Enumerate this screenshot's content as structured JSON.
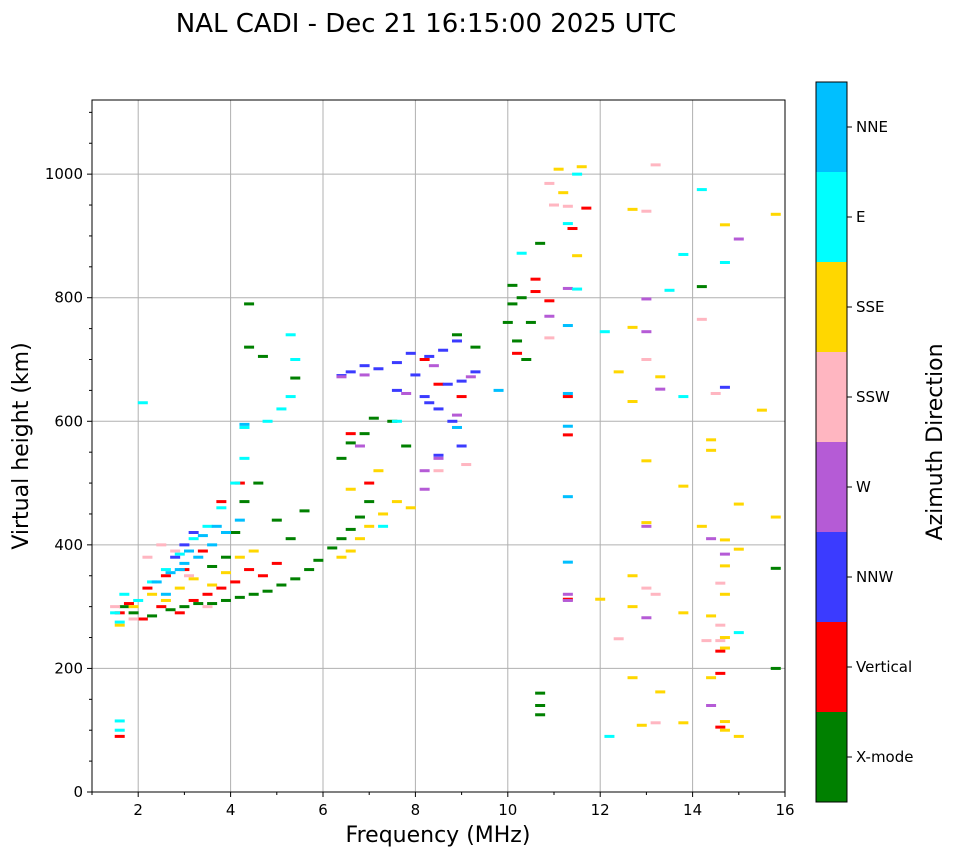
{
  "chart_data": {
    "type": "scatter",
    "title": "NAL CADI - Dec 21 16:15:00 2025 UTC",
    "xlabel": "Frequency (MHz)",
    "ylabel": "Virtual height (km)",
    "xlim": [
      1,
      16
    ],
    "ylim": [
      0,
      1120
    ],
    "xticks": [
      2,
      4,
      6,
      8,
      10,
      12,
      14,
      16
    ],
    "yticks": [
      0,
      200,
      400,
      600,
      800,
      1000
    ],
    "grid": true,
    "colorbar": {
      "label": "Azimuth Direction",
      "categories": [
        {
          "name": "X-mode",
          "color": "#008000"
        },
        {
          "name": "Vertical",
          "color": "#ff0000"
        },
        {
          "name": "NNW",
          "color": "#3b3bff"
        },
        {
          "name": "W",
          "color": "#b55bd6"
        },
        {
          "name": "SSW",
          "color": "#ffb6c1"
        },
        {
          "name": "SSE",
          "color": "#ffd700"
        },
        {
          "name": "E",
          "color": "#00ffff"
        },
        {
          "name": "NNE",
          "color": "#00bfff"
        }
      ]
    },
    "series": [
      {
        "name": "X-mode",
        "points": [
          [
            1.7,
            300
          ],
          [
            1.9,
            290
          ],
          [
            2.3,
            285
          ],
          [
            2.7,
            295
          ],
          [
            3.0,
            300
          ],
          [
            3.3,
            305
          ],
          [
            3.6,
            305
          ],
          [
            3.9,
            310
          ],
          [
            4.2,
            315
          ],
          [
            4.5,
            320
          ],
          [
            4.8,
            325
          ],
          [
            5.1,
            335
          ],
          [
            5.4,
            345
          ],
          [
            5.7,
            360
          ],
          [
            5.9,
            375
          ],
          [
            6.2,
            395
          ],
          [
            6.4,
            410
          ],
          [
            6.6,
            425
          ],
          [
            6.8,
            445
          ],
          [
            7.0,
            470
          ],
          [
            6.4,
            540
          ],
          [
            6.6,
            565
          ],
          [
            6.9,
            580
          ],
          [
            7.1,
            605
          ],
          [
            4.4,
            720
          ],
          [
            4.4,
            790
          ],
          [
            4.7,
            705
          ],
          [
            5.4,
            670
          ],
          [
            3.6,
            365
          ],
          [
            3.9,
            380
          ],
          [
            4.1,
            420
          ],
          [
            4.3,
            470
          ],
          [
            4.6,
            500
          ],
          [
            5.0,
            440
          ],
          [
            5.3,
            410
          ],
          [
            5.6,
            455
          ],
          [
            10.0,
            760
          ],
          [
            10.1,
            790
          ],
          [
            10.2,
            730
          ],
          [
            10.3,
            800
          ],
          [
            10.4,
            700
          ],
          [
            10.1,
            820
          ],
          [
            10.5,
            760
          ],
          [
            10.7,
            888
          ],
          [
            10.7,
            160
          ],
          [
            10.7,
            140
          ],
          [
            10.7,
            125
          ],
          [
            14.2,
            818
          ],
          [
            15.8,
            362
          ],
          [
            15.8,
            200
          ],
          [
            7.5,
            600
          ],
          [
            7.8,
            560
          ],
          [
            8.9,
            740
          ],
          [
            9.3,
            720
          ]
        ]
      },
      {
        "name": "Vertical",
        "points": [
          [
            1.6,
            290
          ],
          [
            1.8,
            305
          ],
          [
            2.1,
            280
          ],
          [
            2.5,
            300
          ],
          [
            2.9,
            290
          ],
          [
            3.2,
            310
          ],
          [
            3.5,
            320
          ],
          [
            3.8,
            330
          ],
          [
            4.1,
            340
          ],
          [
            4.4,
            360
          ],
          [
            4.7,
            350
          ],
          [
            5.0,
            370
          ],
          [
            2.2,
            330
          ],
          [
            2.6,
            350
          ],
          [
            3.0,
            360
          ],
          [
            3.4,
            390
          ],
          [
            3.8,
            470
          ],
          [
            4.2,
            500
          ],
          [
            8.2,
            700
          ],
          [
            8.5,
            660
          ],
          [
            9.0,
            640
          ],
          [
            10.2,
            710
          ],
          [
            10.6,
            830
          ],
          [
            10.6,
            810
          ],
          [
            10.9,
            795
          ],
          [
            11.3,
            640
          ],
          [
            11.3,
            578
          ],
          [
            11.3,
            312
          ],
          [
            11.7,
            945
          ],
          [
            11.4,
            912
          ],
          [
            14.6,
            228
          ],
          [
            14.6,
            192
          ],
          [
            14.6,
            105
          ],
          [
            1.6,
            90
          ],
          [
            6.6,
            580
          ],
          [
            7.0,
            500
          ]
        ]
      },
      {
        "name": "NNW",
        "points": [
          [
            6.6,
            680
          ],
          [
            6.9,
            690
          ],
          [
            7.2,
            685
          ],
          [
            7.6,
            695
          ],
          [
            7.9,
            710
          ],
          [
            8.3,
            705
          ],
          [
            8.6,
            715
          ],
          [
            8.9,
            730
          ],
          [
            8.2,
            640
          ],
          [
            8.5,
            620
          ],
          [
            8.8,
            600
          ],
          [
            9.0,
            665
          ],
          [
            9.3,
            680
          ],
          [
            8.5,
            545
          ],
          [
            9.0,
            560
          ],
          [
            7.6,
            650
          ],
          [
            8.0,
            675
          ],
          [
            8.3,
            630
          ],
          [
            8.7,
            660
          ],
          [
            14.7,
            655
          ],
          [
            3.0,
            400
          ],
          [
            3.2,
            420
          ],
          [
            2.8,
            380
          ],
          [
            6.4,
            674
          ]
        ]
      },
      {
        "name": "W",
        "points": [
          [
            6.4,
            672
          ],
          [
            6.9,
            675
          ],
          [
            8.2,
            490
          ],
          [
            8.2,
            520
          ],
          [
            8.5,
            540
          ],
          [
            8.9,
            610
          ],
          [
            9.2,
            672
          ],
          [
            8.4,
            690
          ],
          [
            11.3,
            815
          ],
          [
            11.3,
            320
          ],
          [
            11.3,
            310
          ],
          [
            13.0,
            798
          ],
          [
            13.0,
            745
          ],
          [
            13.3,
            652
          ],
          [
            14.4,
            410
          ],
          [
            14.7,
            385
          ],
          [
            15.0,
            895
          ],
          [
            14.4,
            140
          ],
          [
            13.0,
            282
          ],
          [
            13.0,
            430
          ],
          [
            10.9,
            770
          ],
          [
            7.8,
            645
          ],
          [
            6.8,
            560
          ]
        ]
      },
      {
        "name": "SSW",
        "points": [
          [
            1.5,
            300
          ],
          [
            1.9,
            280
          ],
          [
            2.2,
            380
          ],
          [
            2.5,
            400
          ],
          [
            2.8,
            390
          ],
          [
            3.1,
            350
          ],
          [
            3.5,
            300
          ],
          [
            10.9,
            985
          ],
          [
            11.0,
            950
          ],
          [
            11.3,
            948
          ],
          [
            10.9,
            735
          ],
          [
            13.0,
            940
          ],
          [
            13.0,
            700
          ],
          [
            13.2,
            1015
          ],
          [
            14.2,
            765
          ],
          [
            14.5,
            645
          ],
          [
            14.6,
            338
          ],
          [
            14.6,
            270
          ],
          [
            14.6,
            245
          ],
          [
            14.3,
            245
          ],
          [
            12.4,
            248
          ],
          [
            13.0,
            330
          ],
          [
            13.2,
            320
          ],
          [
            13.2,
            112
          ],
          [
            9.1,
            530
          ],
          [
            8.5,
            520
          ]
        ]
      },
      {
        "name": "SSE",
        "points": [
          [
            1.6,
            270
          ],
          [
            1.9,
            300
          ],
          [
            2.3,
            320
          ],
          [
            2.6,
            310
          ],
          [
            2.9,
            330
          ],
          [
            3.2,
            345
          ],
          [
            3.6,
            335
          ],
          [
            3.9,
            355
          ],
          [
            4.2,
            380
          ],
          [
            4.5,
            390
          ],
          [
            6.4,
            380
          ],
          [
            6.6,
            390
          ],
          [
            6.8,
            410
          ],
          [
            7.0,
            430
          ],
          [
            7.3,
            450
          ],
          [
            7.6,
            470
          ],
          [
            7.9,
            460
          ],
          [
            6.6,
            490
          ],
          [
            7.2,
            520
          ],
          [
            11.1,
            1008
          ],
          [
            11.2,
            970
          ],
          [
            11.6,
            1012
          ],
          [
            11.5,
            868
          ],
          [
            12.7,
            943
          ],
          [
            12.7,
            752
          ],
          [
            12.7,
            632
          ],
          [
            12.4,
            680
          ],
          [
            13.0,
            536
          ],
          [
            13.0,
            436
          ],
          [
            13.3,
            672
          ],
          [
            12.7,
            350
          ],
          [
            12.7,
            300
          ],
          [
            12.0,
            312
          ],
          [
            12.7,
            185
          ],
          [
            12.9,
            108
          ],
          [
            13.3,
            162
          ],
          [
            13.8,
            112
          ],
          [
            13.8,
            290
          ],
          [
            13.8,
            495
          ],
          [
            14.2,
            430
          ],
          [
            14.4,
            570
          ],
          [
            14.4,
            553
          ],
          [
            14.4,
            285
          ],
          [
            14.4,
            185
          ],
          [
            14.7,
            918
          ],
          [
            14.7,
            408
          ],
          [
            14.7,
            366
          ],
          [
            14.7,
            320
          ],
          [
            14.7,
            250
          ],
          [
            14.7,
            233
          ],
          [
            14.7,
            114
          ],
          [
            14.7,
            100
          ],
          [
            15.0,
            466
          ],
          [
            15.0,
            393
          ],
          [
            15.0,
            90
          ],
          [
            15.5,
            618
          ],
          [
            15.8,
            935
          ],
          [
            15.8,
            445
          ]
        ]
      },
      {
        "name": "E",
        "points": [
          [
            1.5,
            290
          ],
          [
            1.6,
            275
          ],
          [
            1.7,
            320
          ],
          [
            2.0,
            310
          ],
          [
            2.3,
            340
          ],
          [
            2.6,
            360
          ],
          [
            2.9,
            385
          ],
          [
            3.2,
            410
          ],
          [
            3.5,
            430
          ],
          [
            3.8,
            460
          ],
          [
            4.1,
            500
          ],
          [
            4.3,
            540
          ],
          [
            4.3,
            590
          ],
          [
            4.8,
            600
          ],
          [
            5.1,
            620
          ],
          [
            5.3,
            640
          ],
          [
            5.4,
            700
          ],
          [
            5.3,
            740
          ],
          [
            2.1,
            630
          ],
          [
            11.5,
            1000
          ],
          [
            11.3,
            920
          ],
          [
            11.5,
            814
          ],
          [
            12.1,
            745
          ],
          [
            10.3,
            872
          ],
          [
            14.2,
            975
          ],
          [
            14.7,
            857
          ],
          [
            13.8,
            870
          ],
          [
            13.8,
            640
          ],
          [
            13.5,
            812
          ],
          [
            15.0,
            258
          ],
          [
            12.2,
            90
          ],
          [
            1.6,
            115
          ],
          [
            1.6,
            100
          ],
          [
            7.3,
            430
          ],
          [
            7.6,
            600
          ]
        ]
      },
      {
        "name": "NNE",
        "points": [
          [
            2.4,
            340
          ],
          [
            2.7,
            355
          ],
          [
            3.0,
            370
          ],
          [
            3.3,
            380
          ],
          [
            3.6,
            400
          ],
          [
            3.9,
            420
          ],
          [
            4.2,
            440
          ],
          [
            2.6,
            320
          ],
          [
            3.1,
            390
          ],
          [
            3.4,
            415
          ],
          [
            4.3,
            595
          ],
          [
            11.3,
            592
          ],
          [
            11.3,
            478
          ],
          [
            11.3,
            372
          ],
          [
            11.3,
            755
          ],
          [
            11.3,
            645
          ],
          [
            9.8,
            650
          ],
          [
            8.9,
            590
          ],
          [
            3.7,
            430
          ],
          [
            2.9,
            360
          ]
        ]
      }
    ]
  }
}
